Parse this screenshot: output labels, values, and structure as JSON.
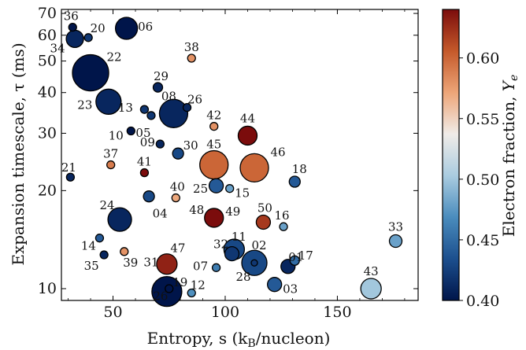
{
  "chart_data": {
    "type": "scatter",
    "xlabel": "Entropy, s (k",
    "xlabel_sub": "B",
    "xlabel_tail": "/nucleon)",
    "ylabel": "Expansion timescale, τ (ms)",
    "y_scale": "log",
    "xlim": [
      27,
      186
    ],
    "ylim": [
      9.2,
      72
    ],
    "x_ticks": [
      {
        "v": 50,
        "label": "50"
      },
      {
        "v": 100,
        "label": "100"
      },
      {
        "v": 150,
        "label": "150"
      }
    ],
    "y_ticks": [
      {
        "v": 10,
        "label": "10"
      },
      {
        "v": 20,
        "label": "20"
      },
      {
        "v": 30,
        "label": "30"
      },
      {
        "v": 40,
        "label": "40"
      },
      {
        "v": 50,
        "label": "50"
      },
      {
        "v": 60,
        "label": "60"
      },
      {
        "v": 70,
        "label": "70"
      }
    ],
    "colorbar": {
      "label": "Electron fraction, ",
      "label_var": "Y",
      "label_sub": "e",
      "range": [
        0.4,
        0.64
      ],
      "colormap": [
        "#00154a",
        "#1c4f8e",
        "#4a8cbd",
        "#aacce0",
        "#f0ece8",
        "#eda578",
        "#c4592a",
        "#7b0c0c"
      ],
      "ticks": [
        {
          "v": 0.4,
          "label": "0.40"
        },
        {
          "v": 0.45,
          "label": "0.45"
        },
        {
          "v": 0.5,
          "label": "0.50"
        },
        {
          "v": 0.55,
          "label": "0.55"
        },
        {
          "v": 0.6,
          "label": "0.60"
        }
      ]
    },
    "points": [
      {
        "label": "01",
        "s": 128,
        "tau": 11.7,
        "ye": 0.41,
        "size": 9,
        "lx": 10,
        "ly": -12
      },
      {
        "label": "02",
        "s": 113,
        "tau": 12.0,
        "ye": 0.43,
        "size": 16,
        "lx": 6,
        "ly": -22
      },
      {
        "label": "03",
        "s": 122,
        "tau": 10.3,
        "ye": 0.44,
        "size": 9,
        "lx": 20,
        "ly": 6
      },
      {
        "label": "04",
        "s": 66,
        "tau": 19.2,
        "ye": 0.43,
        "size": 7,
        "lx": 14,
        "ly": 22
      },
      {
        "label": "05",
        "s": 67,
        "tau": 34.0,
        "ye": 0.42,
        "size": 5,
        "lx": -10,
        "ly": 22
      },
      {
        "label": "06",
        "s": 56,
        "tau": 63.0,
        "ye": 0.4,
        "size": 14,
        "lx": 24,
        "ly": -2
      },
      {
        "label": "07",
        "s": 96,
        "tau": 11.6,
        "ye": 0.46,
        "size": 5,
        "lx": -20,
        "ly": -2
      },
      {
        "label": "08",
        "s": 77,
        "tau": 34.5,
        "ye": 0.41,
        "size": 18,
        "lx": -6,
        "ly": -22
      },
      {
        "label": "09",
        "s": 71,
        "tau": 27.8,
        "ye": 0.41,
        "size": 5,
        "lx": -16,
        "ly": -2
      },
      {
        "label": "10",
        "s": 58,
        "tau": 30.5,
        "ye": 0.4,
        "size": 5,
        "lx": -19,
        "ly": 6
      },
      {
        "label": "11",
        "s": 104,
        "tau": 13.2,
        "ye": 0.43,
        "size": 13,
        "lx": 6,
        "ly": -16
      },
      {
        "label": "12",
        "s": 85,
        "tau": 9.7,
        "ye": 0.47,
        "size": 5,
        "lx": 8,
        "ly": -10
      },
      {
        "label": "13",
        "s": 64,
        "tau": 35.5,
        "ye": 0.42,
        "size": 5,
        "lx": -24,
        "ly": -2
      },
      {
        "label": "14",
        "s": 44,
        "tau": 14.3,
        "ye": 0.44,
        "size": 5,
        "lx": -14,
        "ly": 10
      },
      {
        "label": "15",
        "s": 102,
        "tau": 20.3,
        "ye": 0.48,
        "size": 5,
        "lx": 16,
        "ly": 6
      },
      {
        "label": "16",
        "s": 126,
        "tau": 15.5,
        "ye": 0.48,
        "size": 5,
        "lx": -2,
        "ly": -14
      },
      {
        "label": "17",
        "s": 131,
        "tau": 12.2,
        "ye": 0.45,
        "size": 6,
        "lx": 14,
        "ly": -6
      },
      {
        "label": "18",
        "s": 131,
        "tau": 21.3,
        "ye": 0.44,
        "size": 7,
        "lx": 6,
        "ly": -16
      },
      {
        "label": "19",
        "s": 75,
        "tau": 10.0,
        "ye": 0.4,
        "size": 5,
        "lx": 14,
        "ly": -8
      },
      {
        "label": "20",
        "s": 39,
        "tau": 59.0,
        "ye": 0.42,
        "size": 5,
        "lx": 12,
        "ly": -12
      },
      {
        "label": "21",
        "s": 31,
        "tau": 22.0,
        "ye": 0.41,
        "size": 5,
        "lx": -2,
        "ly": -12
      },
      {
        "label": "22",
        "s": 40,
        "tau": 46.0,
        "ye": 0.4,
        "size": 23,
        "lx": 30,
        "ly": -20
      },
      {
        "label": "23",
        "s": 48,
        "tau": 37.5,
        "ye": 0.41,
        "size": 16,
        "lx": -30,
        "ly": 4
      },
      {
        "label": "24",
        "s": 53,
        "tau": 16.3,
        "ye": 0.41,
        "size": 15,
        "lx": -16,
        "ly": -18
      },
      {
        "label": "25",
        "s": 96,
        "tau": 20.7,
        "ye": 0.44,
        "size": 9,
        "lx": -20,
        "ly": 4
      },
      {
        "label": "26",
        "s": 74,
        "tau": 9.8,
        "ye": 0.4,
        "size": 19,
        "lx": -8,
        "ly": 6
      },
      {
        "label": "26",
        "s": 83,
        "tau": 36.0,
        "ye": 0.41,
        "size": 5,
        "lx": 10,
        "ly": -10
      },
      {
        "label": "28",
        "s": 113,
        "tau": 12.0,
        "ye": 0.42,
        "size": 4,
        "lx": -14,
        "ly": 18
      },
      {
        "label": "29",
        "s": 70,
        "tau": 41.5,
        "ye": 0.41,
        "size": 6,
        "lx": 4,
        "ly": -14
      },
      {
        "label": "30",
        "s": 79,
        "tau": 26.0,
        "ye": 0.43,
        "size": 7,
        "lx": 16,
        "ly": -10
      },
      {
        "label": "31",
        "s": 74,
        "tau": 11.9,
        "ye": 0.63,
        "size": 13,
        "lx": -20,
        "ly": -2
      },
      {
        "label": "32",
        "s": 103,
        "tau": 12.8,
        "ye": 0.42,
        "size": 9,
        "lx": -14,
        "ly": -12
      },
      {
        "label": "33",
        "s": 176,
        "tau": 14.0,
        "ye": 0.48,
        "size": 8,
        "lx": 0,
        "ly": -18
      },
      {
        "label": "34",
        "s": 33,
        "tau": 58.5,
        "ye": 0.41,
        "size": 11,
        "lx": -22,
        "ly": 12
      },
      {
        "label": "35",
        "s": 46,
        "tau": 12.7,
        "ye": 0.41,
        "size": 5,
        "lx": -16,
        "ly": 14
      },
      {
        "label": "36",
        "s": 32,
        "tau": 63.5,
        "ye": 0.4,
        "size": 5,
        "lx": -2,
        "ly": -14
      },
      {
        "label": "37",
        "s": 49,
        "tau": 24.0,
        "ye": 0.59,
        "size": 5,
        "lx": 0,
        "ly": -14
      },
      {
        "label": "38",
        "s": 85,
        "tau": 51.0,
        "ye": 0.58,
        "size": 5,
        "lx": 0,
        "ly": -14
      },
      {
        "label": "39",
        "s": 55,
        "tau": 13.0,
        "ye": 0.58,
        "size": 5,
        "lx": 8,
        "ly": 14
      },
      {
        "label": "40",
        "s": 78,
        "tau": 19.0,
        "ye": 0.57,
        "size": 5,
        "lx": 2,
        "ly": -14
      },
      {
        "label": "41",
        "s": 64,
        "tau": 22.7,
        "ye": 0.64,
        "size": 5,
        "lx": 0,
        "ly": -14
      },
      {
        "label": "42",
        "s": 95,
        "tau": 31.5,
        "ye": 0.58,
        "size": 5,
        "lx": 0,
        "ly": -14
      },
      {
        "label": "43",
        "s": 165,
        "tau": 10.0,
        "ye": 0.5,
        "size": 13,
        "lx": 0,
        "ly": -22
      },
      {
        "label": "44",
        "s": 110,
        "tau": 29.5,
        "ye": 0.64,
        "size": 12,
        "lx": 0,
        "ly": -22
      },
      {
        "label": "45",
        "s": 95,
        "tau": 24.0,
        "ye": 0.6,
        "size": 18,
        "lx": 0,
        "ly": -26
      },
      {
        "label": "46",
        "s": 113,
        "tau": 23.5,
        "ye": 0.6,
        "size": 18,
        "lx": 30,
        "ly": -20
      },
      {
        "label": "47",
        "s": 74,
        "tau": 11.9,
        "ye": 0.64,
        "size": 0,
        "lx": 14,
        "ly": -20
      },
      {
        "label": "48",
        "s": 95,
        "tau": 16.5,
        "ye": 0.64,
        "size": 12,
        "lx": -22,
        "ly": -10
      },
      {
        "label": "49",
        "s": 95,
        "tau": 16.5,
        "ye": 0.64,
        "size": 0,
        "lx": 24,
        "ly": -8
      },
      {
        "label": "50",
        "s": 117,
        "tau": 16.0,
        "ye": 0.62,
        "size": 9,
        "lx": 2,
        "ly": -18
      }
    ]
  }
}
